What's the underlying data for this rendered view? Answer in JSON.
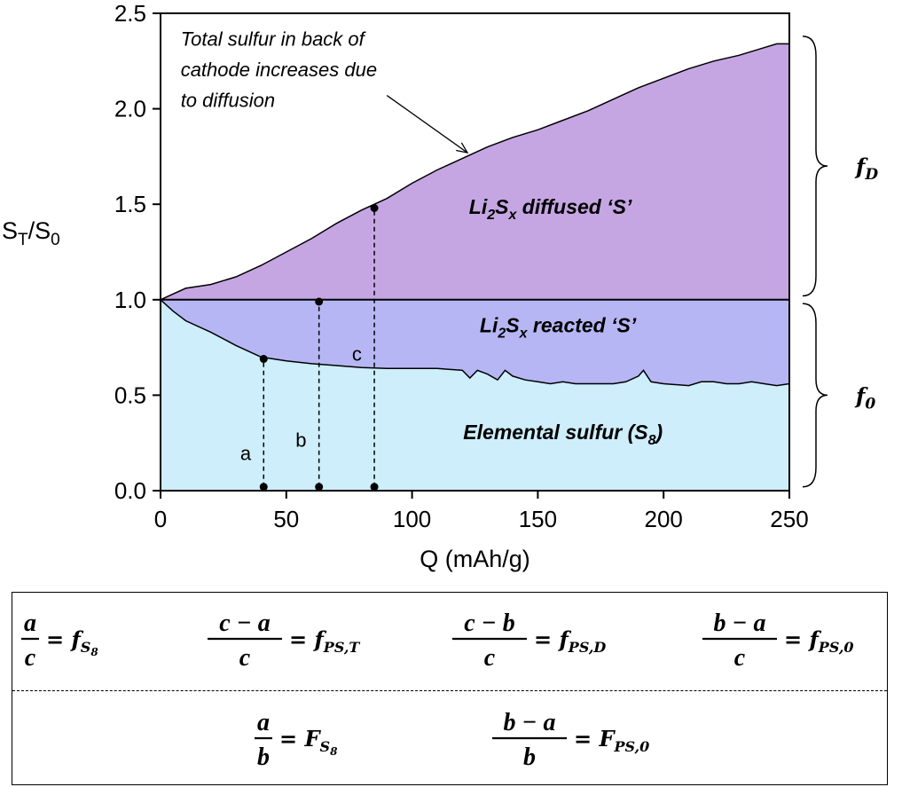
{
  "chart_data": {
    "type": "area",
    "xlabel": "Q (mAh/g)",
    "ylabel": {
      "base": "S",
      "sub1": "T",
      "mid": "/S",
      "sub2": "0"
    },
    "xlim": [
      0,
      250
    ],
    "ylim": [
      0,
      2.5
    ],
    "x_ticks": [
      "0",
      "50",
      "100",
      "150",
      "200",
      "250"
    ],
    "y_ticks": [
      "0.0",
      "0.5",
      "1.0",
      "1.5",
      "2.0",
      "2.5"
    ],
    "grid": false,
    "series": [
      {
        "name": "Elemental sulfur (S8)",
        "color": "#cdeefa",
        "x": [
          0,
          5,
          10,
          20,
          30,
          40,
          50,
          60,
          70,
          80,
          90,
          100,
          110,
          120,
          123,
          126,
          130,
          134,
          137,
          140,
          145,
          150,
          155,
          160,
          165,
          170,
          180,
          185,
          190,
          192,
          195,
          200,
          210,
          215,
          220,
          225,
          230,
          235,
          240,
          245,
          250
        ],
        "y": [
          1.0,
          0.94,
          0.89,
          0.83,
          0.76,
          0.7,
          0.68,
          0.665,
          0.655,
          0.645,
          0.64,
          0.64,
          0.64,
          0.63,
          0.59,
          0.63,
          0.61,
          0.58,
          0.63,
          0.6,
          0.58,
          0.57,
          0.56,
          0.57,
          0.56,
          0.56,
          0.56,
          0.57,
          0.6,
          0.63,
          0.57,
          0.56,
          0.55,
          0.57,
          0.57,
          0.56,
          0.56,
          0.57,
          0.56,
          0.55,
          0.56
        ]
      },
      {
        "name": "Li2Sx reacted 'S'",
        "color": "#b6b6f4",
        "y_top": 1.0
      },
      {
        "name": "Li2Sx diffused 'S'",
        "color": "#c5a6e3",
        "x": [
          0,
          5,
          10,
          20,
          30,
          40,
          50,
          60,
          70,
          80,
          90,
          100,
          110,
          120,
          130,
          140,
          150,
          160,
          170,
          180,
          190,
          200,
          210,
          220,
          230,
          240,
          245,
          250
        ],
        "y": [
          1.0,
          1.03,
          1.06,
          1.08,
          1.12,
          1.18,
          1.25,
          1.32,
          1.4,
          1.47,
          1.53,
          1.61,
          1.68,
          1.74,
          1.8,
          1.85,
          1.89,
          1.94,
          1.99,
          2.05,
          2.11,
          2.16,
          2.21,
          2.25,
          2.28,
          2.32,
          2.34,
          2.34
        ]
      }
    ],
    "reference_line": {
      "y": 1.0
    },
    "region_labels": [
      {
        "parts": [
          [
            "Li",
            false
          ],
          [
            "2",
            "sub"
          ],
          [
            "S",
            false
          ],
          [
            "x",
            "sub"
          ],
          [
            " diffused ‘S’",
            false
          ]
        ],
        "x": 155,
        "y": 1.45
      },
      {
        "parts": [
          [
            "Li",
            false
          ],
          [
            "2",
            "sub"
          ],
          [
            "S",
            false
          ],
          [
            "x",
            "sub"
          ],
          [
            " reacted ‘S’",
            false
          ]
        ],
        "x": 158,
        "y": 0.83
      },
      {
        "parts": [
          [
            "Elemental sulfur (S",
            false
          ],
          [
            "8",
            "sub"
          ],
          [
            ")",
            false
          ]
        ],
        "x": 160,
        "y": 0.27
      }
    ],
    "annotation": {
      "lines": [
        "Total sulfur in back of",
        "cathode increases due",
        "to diffusion"
      ],
      "text_x": 8,
      "text_y": [
        2.33,
        2.17,
        2.01
      ],
      "arrow_from": [
        90,
        2.07
      ],
      "arrow_to": [
        122,
        1.77
      ]
    },
    "markers": [
      {
        "label": "a",
        "x": 41,
        "y_low": 0.02,
        "y_high": 0.69,
        "label_x": 36,
        "label_y": 0.16
      },
      {
        "label": "b",
        "x": 63,
        "y_low": 0.02,
        "y_high": 0.99,
        "label_x": 58,
        "label_y": 0.23
      },
      {
        "label": "c",
        "x": 85,
        "y_low": 0.02,
        "y_high": 1.48,
        "label_x": 80,
        "label_y": 0.68
      }
    ],
    "braces": [
      {
        "label_base": "f",
        "label_sub": "D",
        "y_from": 1.02,
        "y_to": 2.38
      },
      {
        "label_base": "f",
        "label_sub": "0",
        "y_from": 0.02,
        "y_to": 0.98
      }
    ]
  },
  "formulas": {
    "row1": [
      {
        "num": "a",
        "den": "c",
        "rhs": "f",
        "sub": "S",
        "subsub": "8"
      },
      {
        "num": "c − a",
        "den": "c",
        "rhs": "f",
        "sub": "PS,T"
      },
      {
        "num": "c − b",
        "den": "c",
        "rhs": "f",
        "sub": "PS,D"
      },
      {
        "num": "b − a",
        "den": "c",
        "rhs": "f",
        "sub": "PS,0"
      }
    ],
    "row2": [
      {
        "num": "a",
        "den": "b",
        "rhs": "F",
        "sub": "S",
        "subsub": "8"
      },
      {
        "num": "b − a",
        "den": "b",
        "rhs": "F",
        "sub": "PS,0"
      }
    ]
  }
}
